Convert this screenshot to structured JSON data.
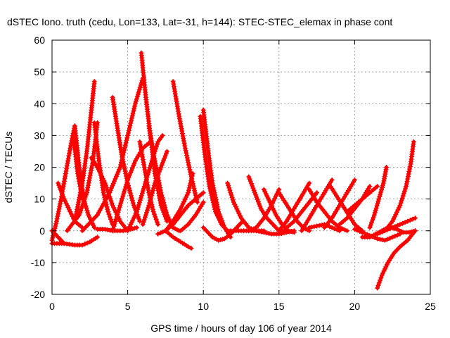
{
  "chart_data": {
    "type": "scatter",
    "title": "dSTEC Iono. truth (cedu, Lon=133, Lat=-31, h=144): STEC-STEC_elemax in phase cont",
    "xlabel": "GPS time / hours of day 106 of year 2014",
    "ylabel": "dSTEC  / TECUs",
    "xlim": [
      0,
      25
    ],
    "ylim": [
      -20,
      60
    ],
    "xticks": [
      0,
      5,
      10,
      15,
      20,
      25
    ],
    "yticks": [
      -20,
      -10,
      0,
      10,
      20,
      30,
      40,
      50,
      60
    ],
    "grid": true,
    "marker": "plus",
    "color": "#ff0000",
    "series": [
      {
        "x": [
          0.0,
          0.2,
          0.4,
          0.6,
          0.8
        ],
        "y": [
          0,
          -1,
          -2,
          -3,
          -4
        ]
      },
      {
        "x": [
          0.0,
          0.8,
          1.5,
          2.0,
          2.5,
          3.0
        ],
        "y": [
          -4,
          -4,
          -4.5,
          -4.5,
          -3.5,
          -2
        ]
      },
      {
        "x": [
          0.4,
          0.8,
          1.2,
          1.5,
          2.0
        ],
        "y": [
          15,
          10,
          6,
          3,
          1
        ]
      },
      {
        "x": [
          0.0,
          0.3,
          0.6,
          0.9,
          1.2,
          1.5
        ],
        "y": [
          -3,
          3,
          10,
          18,
          26,
          33
        ]
      },
      {
        "x": [
          1.5,
          1.8,
          2.1,
          2.4,
          2.8
        ],
        "y": [
          33,
          20,
          10,
          5,
          1
        ]
      },
      {
        "x": [
          1.4,
          1.7,
          2.0
        ],
        "y": [
          30,
          18,
          10
        ]
      },
      {
        "x": [
          1.5,
          2.0,
          2.3,
          2.6,
          2.8
        ],
        "y": [
          3,
          15,
          25,
          38,
          47
        ]
      },
      {
        "x": [
          1.0,
          1.8,
          2.3,
          2.7,
          3.0
        ],
        "y": [
          0,
          5,
          12,
          22,
          34
        ]
      },
      {
        "x": [
          2.8,
          3.1,
          3.4,
          3.7,
          4.0
        ],
        "y": [
          34,
          22,
          12,
          6,
          2
        ]
      },
      {
        "x": [
          2.6,
          3.0,
          3.5,
          4.0,
          4.5,
          5.0
        ],
        "y": [
          23,
          20,
          15,
          8,
          3,
          0
        ]
      },
      {
        "x": [
          3.0,
          3.5,
          4.0,
          4.3,
          4.7,
          5.2,
          5.6
        ],
        "y": [
          0.5,
          0.5,
          0,
          0,
          0,
          0.5,
          1
        ]
      },
      {
        "x": [
          4.0,
          4.3,
          4.6,
          5.0,
          5.4,
          5.8
        ],
        "y": [
          42,
          33,
          24,
          15,
          8,
          3
        ]
      },
      {
        "x": [
          2.0,
          3.0,
          3.8,
          4.5,
          5.0,
          5.5,
          6.0
        ],
        "y": [
          0,
          5,
          12,
          20,
          30,
          40,
          48
        ]
      },
      {
        "x": [
          4.0,
          4.5,
          5.0,
          5.5,
          6.0,
          6.5
        ],
        "y": [
          0,
          8,
          16,
          22,
          26,
          28
        ]
      },
      {
        "x": [
          5.8,
          6.1,
          6.4,
          6.7,
          7.0
        ],
        "y": [
          28,
          20,
          12,
          6,
          2
        ]
      },
      {
        "x": [
          5.9,
          6.2,
          6.5,
          6.8,
          7.2,
          7.6
        ],
        "y": [
          56,
          42,
          30,
          18,
          8,
          3
        ]
      },
      {
        "x": [
          5.0,
          5.6,
          6.1,
          6.6,
          7.0,
          7.3
        ],
        "y": [
          0,
          6,
          14,
          22,
          28,
          30
        ]
      },
      {
        "x": [
          6.0,
          6.4,
          6.8,
          7.2,
          7.6
        ],
        "y": [
          2,
          8,
          15,
          20,
          25
        ]
      },
      {
        "x": [
          6.4,
          6.8,
          7.2,
          7.6,
          8.0,
          8.4
        ],
        "y": [
          33,
          22,
          12,
          5,
          1,
          0
        ]
      },
      {
        "x": [
          7.5,
          8.0,
          8.5,
          9.0,
          9.5,
          10.0
        ],
        "y": [
          0,
          2,
          5,
          8,
          10,
          12
        ]
      },
      {
        "x": [
          8.0,
          8.4,
          8.8,
          9.2,
          9.6
        ],
        "y": [
          47,
          36,
          26,
          17,
          9
        ]
      },
      {
        "x": [
          7.0,
          7.5,
          8.0,
          8.5,
          9.0,
          9.3
        ],
        "y": [
          -1,
          0,
          3,
          7,
          12,
          18
        ]
      },
      {
        "x": [
          7.5,
          8.0,
          8.5,
          9.0,
          9.2
        ],
        "y": [
          0,
          -2,
          -3.5,
          -5,
          -5.5
        ]
      },
      {
        "x": [
          8.5,
          9.0,
          9.5,
          10.0
        ],
        "y": [
          0,
          2,
          5,
          9
        ]
      },
      {
        "x": [
          9.8,
          10.1,
          10.4,
          10.8,
          11.2,
          11.6,
          12.0
        ],
        "y": [
          36,
          24,
          14,
          6,
          2,
          0,
          0
        ]
      },
      {
        "x": [
          10.0,
          10.3,
          10.6,
          11.0,
          11.4,
          11.8
        ],
        "y": [
          38,
          26,
          15,
          6,
          1,
          -2
        ]
      },
      {
        "x": [
          10.0,
          10.6,
          11.0,
          11.4,
          11.8,
          12.2,
          12.6
        ],
        "y": [
          1,
          -2,
          -3,
          -2.5,
          -1,
          1,
          3
        ]
      },
      {
        "x": [
          11.6,
          12.0,
          12.5,
          13.0,
          13.5,
          14.0
        ],
        "y": [
          15,
          9,
          4,
          1,
          0,
          0
        ]
      },
      {
        "x": [
          13.0,
          13.4,
          13.8,
          14.2,
          14.6,
          15.0,
          15.5
        ],
        "y": [
          17,
          12,
          7,
          4,
          2,
          0,
          0
        ]
      },
      {
        "x": [
          12.0,
          13.0,
          13.5,
          14.0,
          14.5,
          15.0
        ],
        "y": [
          0,
          0,
          1,
          4,
          8,
          13
        ]
      },
      {
        "x": [
          14.0,
          14.4,
          14.8,
          15.2,
          15.6,
          16.0
        ],
        "y": [
          13,
          9,
          5,
          2,
          0,
          -0.5
        ]
      },
      {
        "x": [
          13.0,
          13.5,
          14.0,
          14.5,
          15.0,
          15.5,
          16.0
        ],
        "y": [
          0,
          0,
          -0.5,
          -1,
          -1,
          -0.5,
          0
        ]
      },
      {
        "x": [
          15.0,
          15.4,
          15.8,
          16.2,
          16.6,
          17.0
        ],
        "y": [
          12,
          9,
          6,
          3,
          1,
          0
        ]
      },
      {
        "x": [
          15.0,
          15.5,
          16.0,
          16.5,
          17.0
        ],
        "y": [
          0,
          3,
          7,
          11,
          15
        ]
      },
      {
        "x": [
          15.5,
          16.0,
          16.5,
          17.0,
          17.5
        ],
        "y": [
          1,
          3,
          6,
          9,
          12
        ]
      },
      {
        "x": [
          16.5,
          17.0,
          17.5,
          18.0,
          18.5
        ],
        "y": [
          0,
          4,
          8,
          12,
          16
        ]
      },
      {
        "x": [
          17.0,
          17.5,
          18.0,
          18.5,
          19.0,
          19.5
        ],
        "y": [
          13,
          9,
          6,
          3,
          1,
          0
        ]
      },
      {
        "x": [
          17.0,
          17.5,
          18.0,
          18.5,
          19.0
        ],
        "y": [
          1,
          1.5,
          2,
          1,
          0
        ]
      },
      {
        "x": [
          18.0,
          18.5,
          19.0,
          19.5,
          20.0
        ],
        "y": [
          1,
          4,
          8,
          12,
          16
        ]
      },
      {
        "x": [
          18.4,
          18.8,
          19.2,
          19.6,
          20.0,
          20.5
        ],
        "y": [
          14,
          11,
          8,
          5,
          2,
          0
        ]
      },
      {
        "x": [
          19.0,
          19.5,
          20.0,
          20.5,
          21.0
        ],
        "y": [
          2,
          4,
          7,
          10,
          14
        ]
      },
      {
        "x": [
          19.5,
          20.0,
          20.5,
          21.0,
          21.5
        ],
        "y": [
          6,
          8,
          10,
          12,
          14
        ]
      },
      {
        "x": [
          20.0,
          20.5,
          21.0,
          21.5,
          22.0,
          22.5,
          23.0
        ],
        "y": [
          0.5,
          -0.5,
          -1.5,
          -2.5,
          -3,
          -2,
          -1
        ]
      },
      {
        "x": [
          20.5,
          21.0,
          21.4,
          21.8,
          22.2,
          22.6
        ],
        "y": [
          -2,
          -2,
          -1,
          0,
          1,
          1
        ]
      },
      {
        "x": [
          21.0,
          21.3,
          21.6,
          21.9,
          22.1
        ],
        "y": [
          1,
          5,
          10,
          15,
          20
        ]
      },
      {
        "x": [
          21.5,
          22.0,
          22.5,
          23.0,
          23.5,
          24.0
        ],
        "y": [
          -1,
          0,
          1,
          2,
          3,
          4
        ]
      },
      {
        "x": [
          22.0,
          22.5,
          23.0,
          23.4,
          23.7,
          23.9
        ],
        "y": [
          0,
          3,
          8,
          14,
          21,
          28
        ]
      },
      {
        "x": [
          21.5,
          21.8,
          22.2,
          22.6,
          23.0,
          23.5,
          24.0
        ],
        "y": [
          -18,
          -14,
          -10,
          -7,
          -5,
          -3,
          0
        ]
      },
      {
        "x": [
          22.4,
          22.8,
          23.2,
          23.6,
          24.0
        ],
        "y": [
          1,
          0.5,
          -0.5,
          -0.5,
          0
        ]
      }
    ]
  }
}
